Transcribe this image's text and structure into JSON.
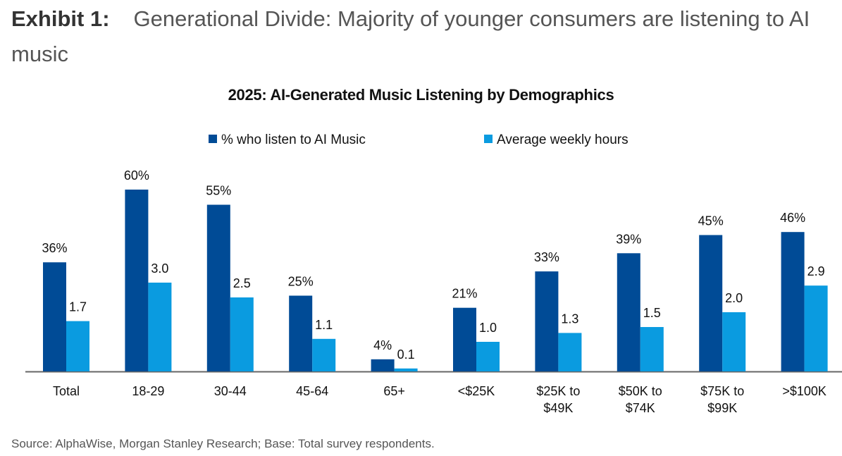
{
  "exhibit": {
    "label": "Exhibit 1:",
    "title_line1": "Generational Divide: Majority of younger consumers are listening to AI",
    "title_line2": "music"
  },
  "source": "Source: AlphaWise, Morgan Stanley Research; Base: Total survey respondents.",
  "colors": {
    "series1": "#004B96",
    "series2": "#0A9BE0",
    "axis": "#666666",
    "text": "#111111"
  },
  "chart_data": {
    "type": "bar",
    "title": "2025: AI-Generated Music Listening by Demographics",
    "legend_position": "top",
    "grid": false,
    "categories": [
      [
        "Total"
      ],
      [
        "18-29"
      ],
      [
        "30-44"
      ],
      [
        "45-64"
      ],
      [
        "65+"
      ],
      [
        "<$25K"
      ],
      [
        "$25K to",
        "$49K"
      ],
      [
        "$50K to",
        "$74K"
      ],
      [
        "$75K to",
        "$99K"
      ],
      [
        ">$100K"
      ]
    ],
    "series": [
      {
        "name": "% who listen to AI Music",
        "values": [
          36,
          60,
          55,
          25,
          4,
          21,
          33,
          39,
          45,
          46
        ],
        "labels": [
          "36%",
          "60%",
          "55%",
          "25%",
          "4%",
          "21%",
          "33%",
          "39%",
          "45%",
          "46%"
        ]
      },
      {
        "name": "Average weekly hours",
        "values": [
          1.7,
          3.0,
          2.5,
          1.1,
          0.1,
          1.0,
          1.3,
          1.5,
          2.0,
          2.9
        ],
        "labels": [
          "1.7",
          "3.0",
          "2.5",
          "1.1",
          "0.1",
          "1.0",
          "1.3",
          "1.5",
          "2.0",
          "2.9"
        ]
      }
    ]
  }
}
